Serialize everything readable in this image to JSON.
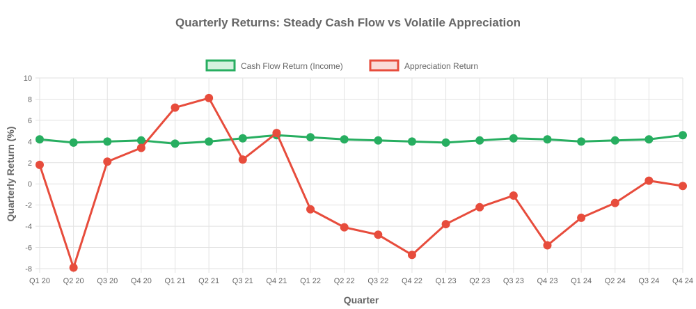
{
  "chart_data": {
    "type": "line",
    "title": "Quarterly Returns: Steady Cash Flow vs Volatile Appreciation",
    "xlabel": "Quarter",
    "ylabel": "Quarterly Return (%)",
    "ylim": [
      -8,
      10
    ],
    "yticks": [
      "10",
      "8",
      "6",
      "4",
      "2",
      "0",
      "-2",
      "-4",
      "-6",
      "-8"
    ],
    "grid": true,
    "legend_position": "top",
    "categories": [
      "Q1 20",
      "Q2 20",
      "Q3 20",
      "Q4 20",
      "Q1 21",
      "Q2 21",
      "Q3 21",
      "Q4 21",
      "Q1 22",
      "Q2 22",
      "Q3 22",
      "Q4 22",
      "Q1 23",
      "Q2 23",
      "Q3 23",
      "Q4 23",
      "Q1 24",
      "Q2 24",
      "Q3 24",
      "Q4 24"
    ],
    "series": [
      {
        "name": "Cash Flow Return (Income)",
        "color": "#27ae60",
        "fill": "#d4f2df",
        "values": [
          4.2,
          3.9,
          4.0,
          4.1,
          3.8,
          4.0,
          4.3,
          4.6,
          4.4,
          4.2,
          4.1,
          4.0,
          3.9,
          4.1,
          4.3,
          4.2,
          4.0,
          4.1,
          4.2,
          4.6
        ]
      },
      {
        "name": "Appreciation Return",
        "color": "#e74c3c",
        "fill": "#fadbd8",
        "values": [
          1.8,
          -7.9,
          2.1,
          3.4,
          7.2,
          8.1,
          2.3,
          4.8,
          -2.4,
          -4.1,
          -4.8,
          -6.7,
          -3.8,
          -2.2,
          -1.1,
          -5.8,
          -3.2,
          -1.8,
          0.3,
          -0.2
        ]
      }
    ]
  }
}
